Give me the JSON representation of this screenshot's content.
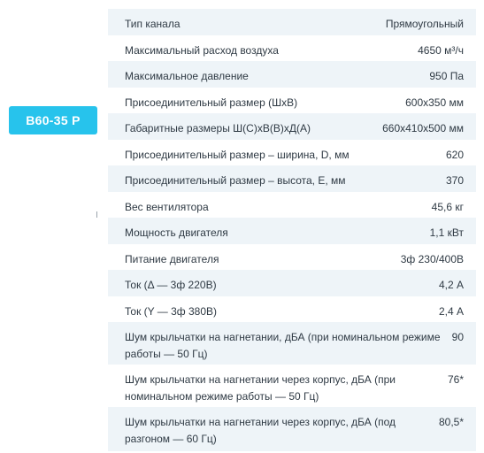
{
  "model": {
    "label": "B60-35 P"
  },
  "specs": {
    "rows": [
      {
        "label": "Тип канала",
        "value": "Прямоугольный"
      },
      {
        "label": "Максимальный расход воздуха",
        "value": "4650 м³/ч"
      },
      {
        "label": "Максимальное давление",
        "value": "950 Па"
      },
      {
        "label": "Присоединительный размер (ШхВ)",
        "value": "600x350 мм"
      },
      {
        "label": "Габаритные размеры Ш(С)хВ(В)хД(А)",
        "value": "660x410x500 мм"
      },
      {
        "label": "Присоединительный размер – ширина, D, мм",
        "value": "620"
      },
      {
        "label": "Присоединительный размер – высота, E, мм",
        "value": "370"
      },
      {
        "label": "Вес вентилятора",
        "value": "45,6 кг"
      },
      {
        "label": "Мощность двигателя",
        "value": "1,1 кВт"
      },
      {
        "label": "Питание двигателя",
        "value": "3ф 230/400В"
      },
      {
        "label": "Ток (Δ — 3ф 220В)",
        "value": "4,2 А"
      },
      {
        "label": "Ток (Y — 3ф 380В)",
        "value": "2,4 А"
      },
      {
        "label": "Шум крыльчатки на нагнетании, дБА (при номинальном режиме работы — 50 Гц)",
        "value": "90"
      },
      {
        "label": "Шум крыльчатки на нагнетании через корпус, дБА (при номинальном режиме работы — 50 Гц)",
        "value": "76*"
      },
      {
        "label": "Шум крыльчатки на нагнетании через корпус, дБА (под разгоном — 60 Гц)",
        "value": "80,5*"
      }
    ]
  }
}
